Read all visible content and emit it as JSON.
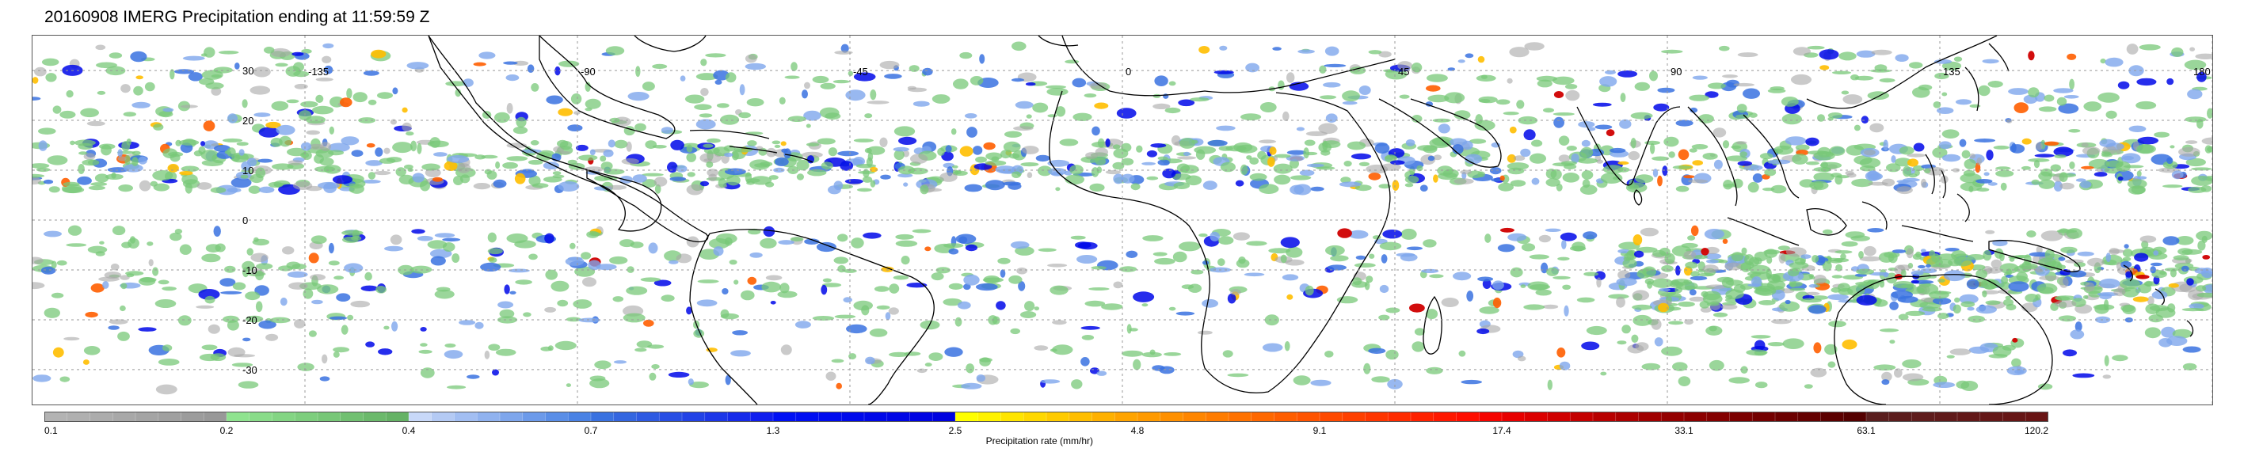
{
  "title": "20160908 IMERG Precipitation ending at 11:59:59 Z",
  "map": {
    "lon_labels": [
      "-135",
      "-90",
      "-45",
      "0",
      "45",
      "90",
      "135",
      "180"
    ],
    "lat_labels": [
      "30",
      "20",
      "10",
      "0",
      "-10",
      "-20",
      "-30"
    ],
    "lon_values": [
      -135,
      -90,
      -45,
      0,
      45,
      90,
      135,
      180
    ],
    "lat_values": [
      30,
      20,
      10,
      0,
      -10,
      -20,
      -30
    ],
    "lon_range": [
      -180,
      180
    ],
    "lat_range": [
      -37,
      37
    ],
    "grid": true,
    "coastline_color": "#000000",
    "grid_color": "#999999"
  },
  "colorbar": {
    "title": "Precipitation rate (mm/hr)",
    "tick_labels": [
      "0.1",
      "0.2",
      "0.4",
      "0.7",
      "1.3",
      "2.5",
      "4.8",
      "9.1",
      "17.4",
      "33.1",
      "63.1",
      "120.2"
    ],
    "group_colors": [
      [
        "#b3b3b3",
        "#b0b0b0",
        "#acacac",
        "#a8a8a8",
        "#a4a4a4",
        "#a0a0a0",
        "#9c9c9c",
        "#989898"
      ],
      [
        "#8fe38f",
        "#89dc89",
        "#83d583",
        "#7dce7d",
        "#77c777",
        "#71c071",
        "#6bb96b",
        "#65b265"
      ],
      [
        "#c8d8f8",
        "#b4caf4",
        "#a2bef2",
        "#90b2ef",
        "#7ea6ec",
        "#6c9aea",
        "#5a8ee7",
        "#4a82e4"
      ],
      [
        "#3a72e0",
        "#3466e0",
        "#2e5ae2",
        "#284ee4",
        "#2242e6",
        "#1c36e8",
        "#162aea",
        "#101eee"
      ],
      [
        "#0010f4",
        "#000ef2",
        "#000cef",
        "#000aec",
        "#0008e9",
        "#0006e6",
        "#0004e3",
        "#0002e0"
      ],
      [
        "#ffff00",
        "#fff200",
        "#ffe500",
        "#ffd800",
        "#ffcb00",
        "#ffbe00",
        "#ffb100",
        "#ffa400"
      ],
      [
        "#ff9a00",
        "#ff9000",
        "#ff8600",
        "#ff7c00",
        "#ff7200",
        "#ff6800",
        "#ff5e00",
        "#ff5400"
      ],
      [
        "#ff4a00",
        "#ff4000",
        "#ff3600",
        "#ff2c00",
        "#ff2200",
        "#ff1800",
        "#ff0e00",
        "#f50400"
      ],
      [
        "#e80000",
        "#dc0000",
        "#d00000",
        "#c40000",
        "#b80000",
        "#ac0000",
        "#a00000",
        "#940000"
      ],
      [
        "#8c0000",
        "#840000",
        "#7c0000",
        "#740000",
        "#6c0000",
        "#640000",
        "#5c0000",
        "#540000"
      ],
      [
        "#5a1e1e",
        "#5c1d1d",
        "#5f1c1c",
        "#601a1a",
        "#621818",
        "#641717",
        "#661616",
        "#681414"
      ]
    ]
  }
}
